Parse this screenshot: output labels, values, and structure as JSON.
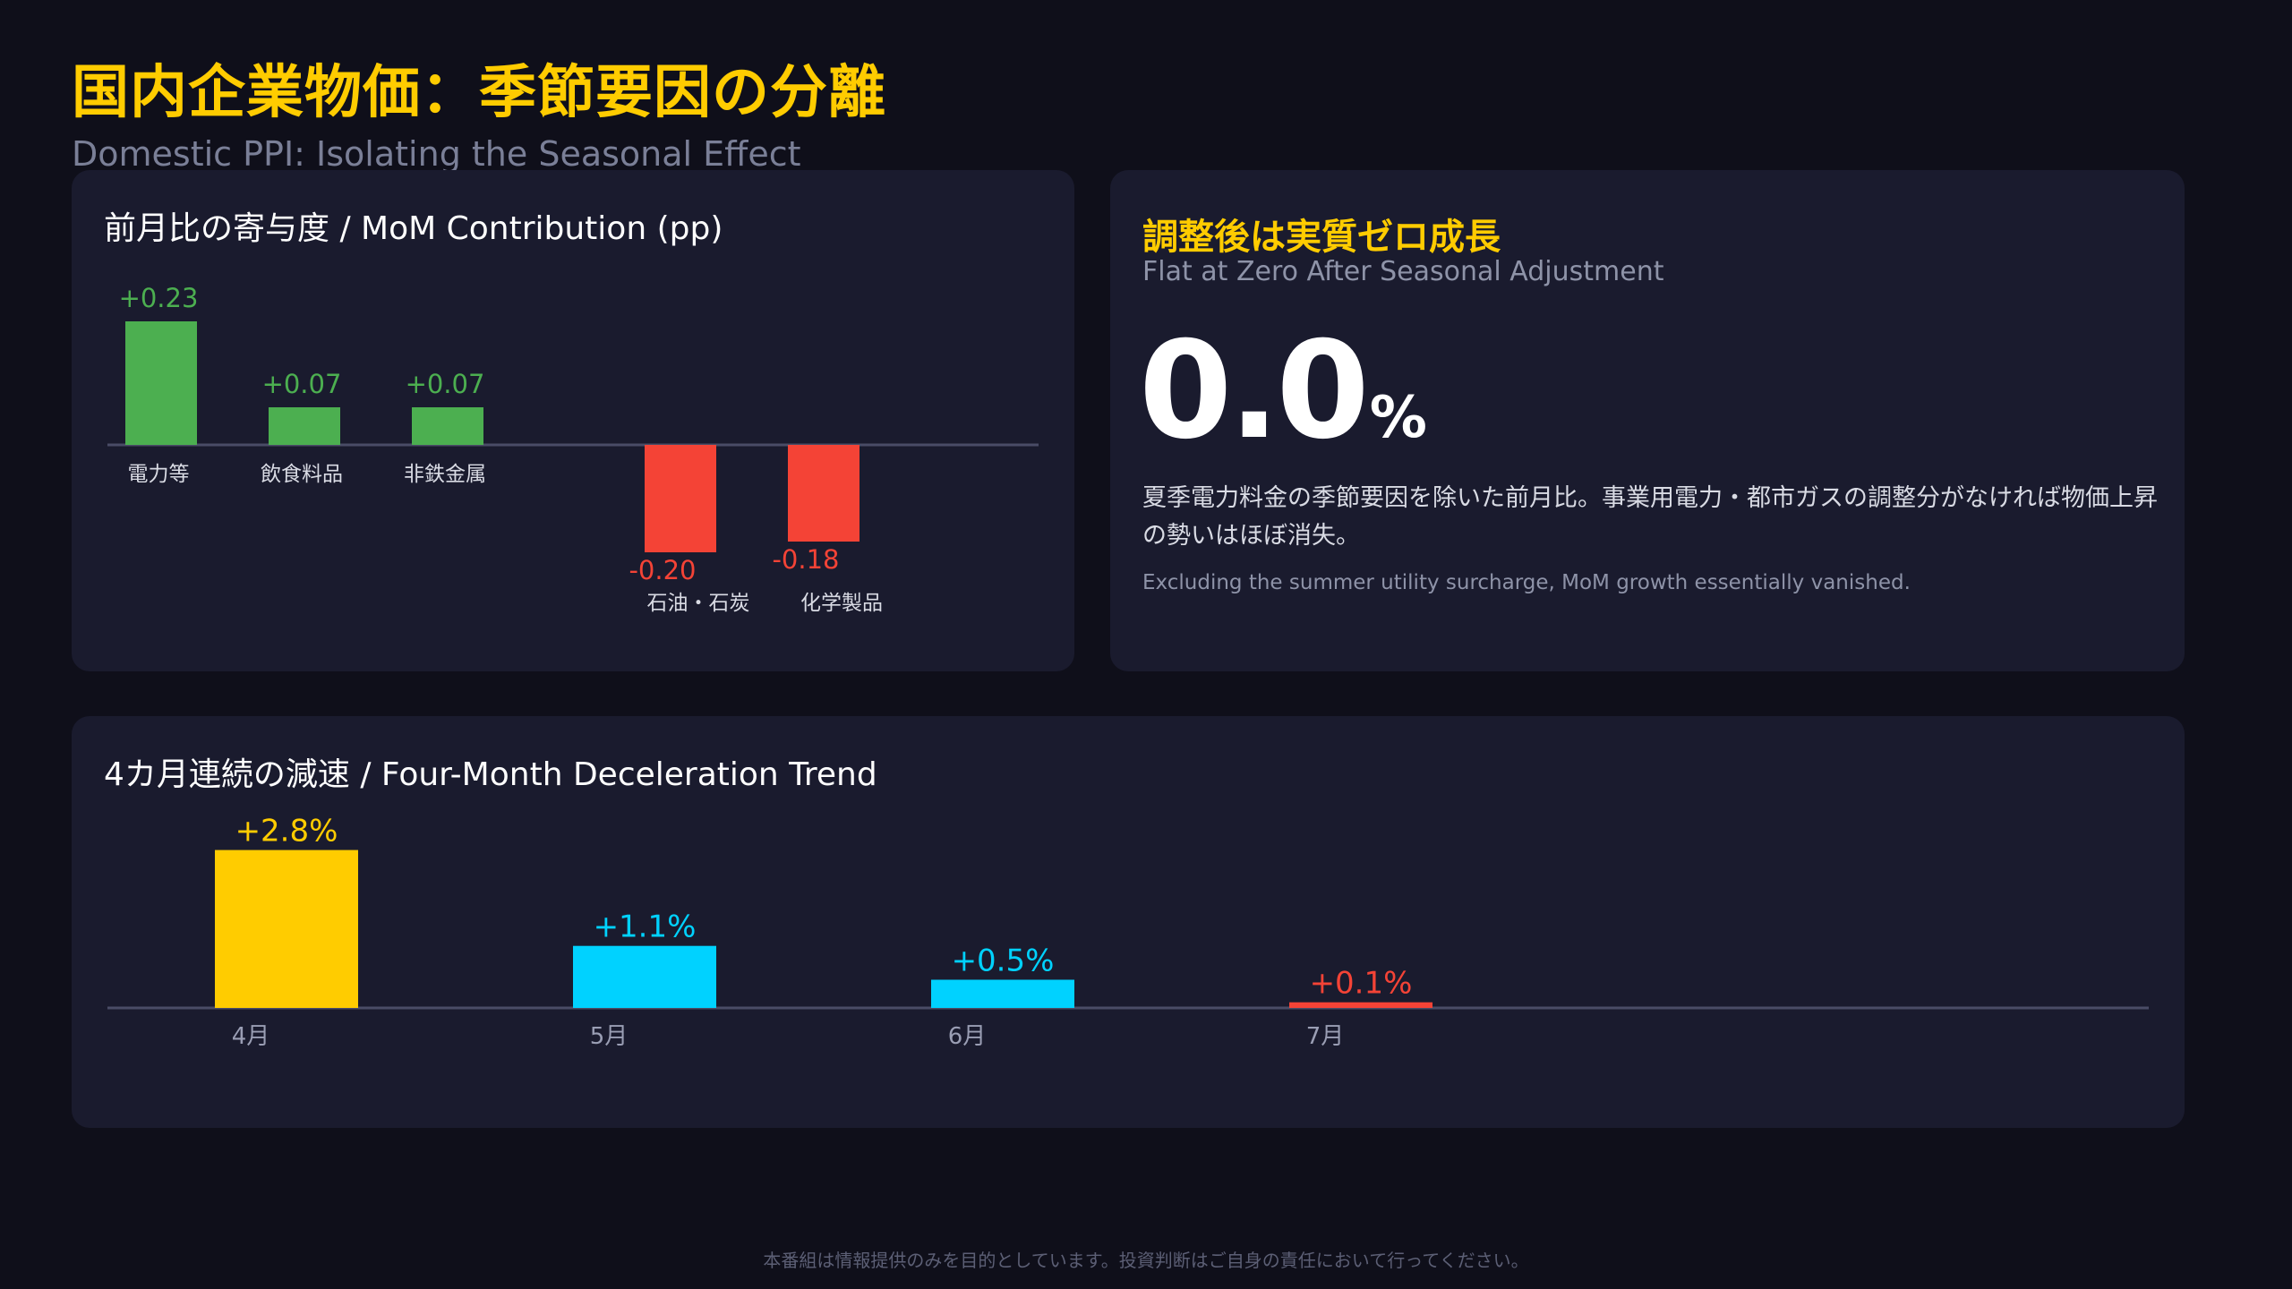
{
  "header": {
    "title": "国内企業物価：季節要因の分離",
    "subtitle": "Domestic PPI: Isolating the Seasonal Effect"
  },
  "contribution": {
    "title": "前月比の寄与度 / MoM Contribution (pp)"
  },
  "headline": {
    "title": "調整後は実質ゼロ成長",
    "subtitle": "Flat at Zero After Seasonal Adjustment",
    "value": "0.0",
    "unit": "%",
    "description": "夏季電力料金の季節要因を除いた前月比。事業用電力・都市ガスの調整分がなければ物価上昇の勢いはほぼ消失。",
    "description_en": "Excluding the summer utility surcharge, MoM growth essentially vanished."
  },
  "trend": {
    "title": "4カ月連続の減速 / Four-Month Deceleration Trend"
  },
  "colors": {
    "positive": "#4caf50",
    "negative": "#f44336",
    "highlight": "#ffcc00",
    "cyan": "#00d2ff",
    "axis": "#4a4c66"
  },
  "disclaimer": "本番組は情報提供のみを目的としています。投資判断はご自身の責任において行ってください。",
  "chart_data": [
    {
      "type": "bar",
      "categories": [
        "電力等",
        "飲食料品",
        "非鉄金属",
        "石油・石炭",
        "化学製品"
      ],
      "values": [
        0.23,
        0.07,
        0.07,
        -0.2,
        -0.18
      ],
      "labels": [
        "+0.23",
        "+0.07",
        "+0.07",
        "-0.20",
        "-0.18"
      ],
      "title": "前月比の寄与度 / MoM Contribution (pp)",
      "colors": [
        "#4caf50",
        "#4caf50",
        "#4caf50",
        "#f44336",
        "#f44336"
      ]
    },
    {
      "type": "bar",
      "categories": [
        "4月",
        "5月",
        "6月",
        "7月"
      ],
      "values": [
        2.8,
        1.1,
        0.5,
        0.1
      ],
      "labels": [
        "+2.8%",
        "+1.1%",
        "+0.5%",
        "+0.1%"
      ],
      "title": "4カ月連続の減速 / Four-Month Deceleration Trend",
      "colors": [
        "#ffcc00",
        "#00d2ff",
        "#00d2ff",
        "#f44336"
      ]
    }
  ]
}
